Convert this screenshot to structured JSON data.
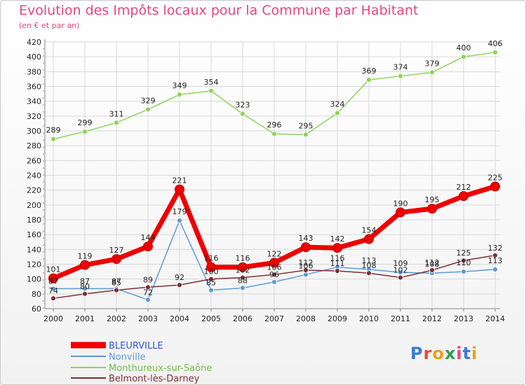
{
  "title": "Evolution des Impôts locaux pour la Commune par Habitant",
  "subtitle": "(en € et par an)",
  "logo": "Proxiti",
  "colors": {
    "title": "#e8457c",
    "grid": "#d8d8d8",
    "axis": "#888888"
  },
  "chart_data": {
    "type": "line",
    "title": "Evolution des Impôts locaux pour la Commune par Habitant",
    "subtitle": "(en € et par an)",
    "x": [
      "2000",
      "2001",
      "2002",
      "2003",
      "2004",
      "2005",
      "2006",
      "2007",
      "2008",
      "2009",
      "2010",
      "2011",
      "2012",
      "2013",
      "2014"
    ],
    "ylim": [
      60,
      420
    ],
    "yticks": [
      60,
      80,
      100,
      120,
      140,
      160,
      180,
      200,
      220,
      240,
      260,
      280,
      300,
      320,
      340,
      360,
      380,
      400,
      420
    ],
    "grid": true,
    "legend_position": "bottom-left",
    "series": [
      {
        "name": "BLEURVILLE",
        "color": "#ee0000",
        "width": 7,
        "values": [
          101,
          119,
          127,
          144,
          221,
          116,
          116,
          122,
          143,
          142,
          154,
          190,
          195,
          212,
          225
        ]
      },
      {
        "name": "Nonville",
        "color": "#5b9bd5",
        "width": 1.5,
        "values": [
          87,
          87,
          87,
          72,
          179,
          85,
          88,
          96,
          106,
          116,
          113,
          109,
          108,
          110,
          113
        ]
      },
      {
        "name": "Monthureux-sur-Saône",
        "color": "#8ed35c",
        "width": 1.5,
        "values": [
          289,
          299,
          311,
          329,
          349,
          354,
          323,
          296,
          295,
          324,
          369,
          374,
          379,
          400,
          406
        ]
      },
      {
        "name": "Belmont-lès-Darney",
        "color": "#7b2f35",
        "width": 1.5,
        "values": [
          74,
          80,
          85,
          89,
          92,
          100,
          102,
          106,
          112,
          111,
          108,
          102,
          112,
          125,
          132
        ]
      }
    ]
  }
}
